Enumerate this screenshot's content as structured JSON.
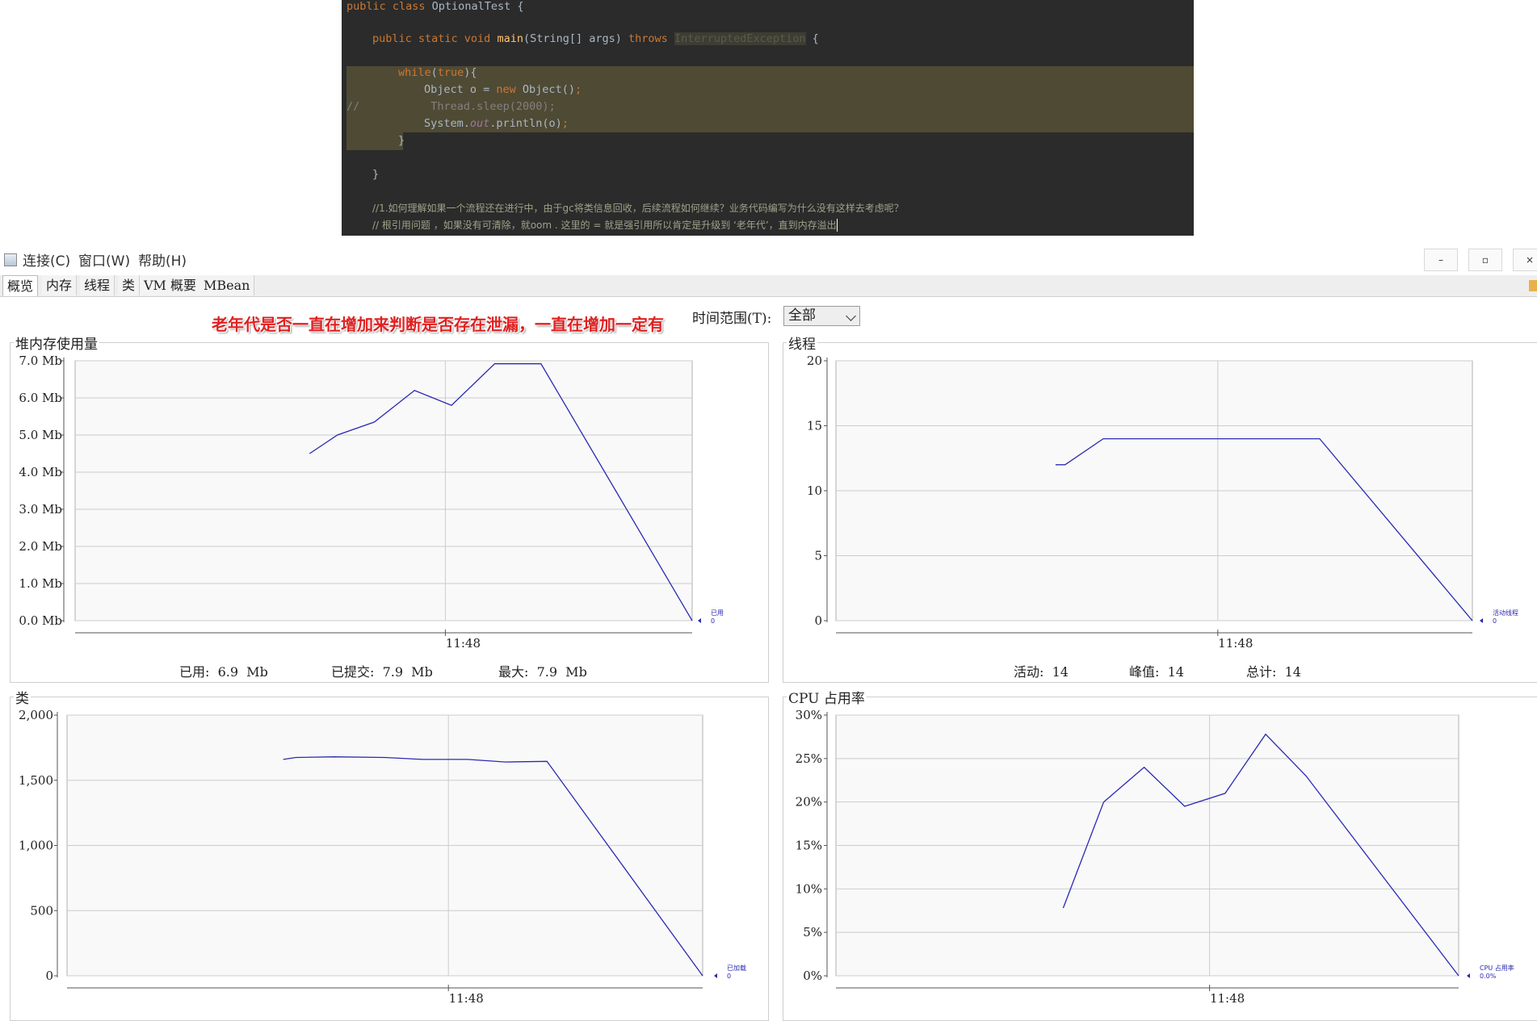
{
  "editor": {
    "lines": {
      "l1": {
        "kw": "public class",
        "rest": " OptionalTest {"
      },
      "l2": {
        "kw1": "public static void",
        "fn": "main",
        "rest1": "(String[] args) ",
        "kw2": "throws",
        "ex": "InterruptedException",
        "rest2": " {"
      },
      "l3": {
        "kw": "while",
        "rest1": "(",
        "kw2": "true",
        "rest2": "){"
      },
      "l4": {
        "rest1": "Object o = ",
        "kw": "new",
        "rest2": " Object()",
        "semi": ";"
      },
      "l5": {
        "cm": "//",
        "gr": "Thread.sleep(2000);"
      },
      "l6": {
        "rest1": "System.",
        "it": "out",
        "rest2": ".println(o)",
        "semi": ";"
      },
      "l7": {
        "rest": "}"
      },
      "l8": {
        "rest": "}"
      },
      "l9": {
        "cm": "//1.如何理解如果一个流程还在进行中，由于gc将类信息回收，后续流程如何继续？业务代码编写为什么没有这样去考虑呢？"
      },
      "l10": {
        "cm": "// 根引用问题 ，如果没有可清除，就oom . 这里的 = 就是强引用所以肯定是升级到 ‘老年代’，直到内存溢出"
      }
    }
  },
  "menubar": {
    "items": [
      "连接(C)",
      "窗口(W)",
      "帮助(H)"
    ],
    "minimize": "–",
    "restore": "▫",
    "close": "×"
  },
  "tabs": [
    "概览",
    "内存",
    "线程",
    "类",
    "VM 概要",
    "MBean"
  ],
  "time_range": {
    "label": "时间范围(T):",
    "value": "全部"
  },
  "annotation": "老年代是否一直在增加来判断是否存在泄漏，一直在增加一定有",
  "panels": {
    "heap": {
      "title": "堆内存使用量",
      "stats": {
        "used": "已用:  6.9  Mb",
        "committed": "已提交:  7.9  Mb",
        "max": "最大:  7.9  Mb"
      }
    },
    "threads": {
      "title": "线程",
      "stats": {
        "live": "活动:  14",
        "peak": "峰值:  14",
        "total": "总计:  14"
      }
    },
    "classes": {
      "title": "类"
    },
    "cpu": {
      "title": "CPU 占用率"
    }
  },
  "colors": {
    "line": "#2a2ab4",
    "grid": "#cccccc",
    "plot_bg": "#f9f9f9",
    "annotation": "#e02020"
  },
  "chart_data": [
    {
      "type": "line",
      "name": "heap",
      "title": "堆内存使用量",
      "ylim": [
        0,
        7
      ],
      "yticks": [
        0,
        1,
        2,
        3,
        4,
        5,
        6,
        7
      ],
      "ytick_labels": [
        "0.0 Mb",
        "1.0 Mb",
        "2.0 Mb",
        "3.0 Mb",
        "4.0 Mb",
        "5.0 Mb",
        "6.0 Mb",
        "7.0 Mb"
      ],
      "xlim": [
        0,
        100
      ],
      "xtick": {
        "pos": 60,
        "label": "11:48"
      },
      "series": [
        {
          "name": "已用",
          "last": "0",
          "x": [
            38,
            42.5,
            48.5,
            55,
            61,
            68,
            75.5,
            100
          ],
          "y": [
            4.5,
            5.0,
            5.35,
            6.2,
            5.8,
            6.92,
            6.92,
            0.0
          ]
        }
      ]
    },
    {
      "type": "line",
      "name": "threads",
      "title": "线程",
      "ylim": [
        0,
        20
      ],
      "yticks": [
        0,
        5,
        10,
        15,
        20
      ],
      "ytick_labels": [
        "0",
        "5",
        "10",
        "15",
        "20"
      ],
      "xlim": [
        0,
        100
      ],
      "xtick": {
        "pos": 60,
        "label": "11:48"
      },
      "series": [
        {
          "name": "活动线程",
          "last": "0",
          "x": [
            34.5,
            36,
            42,
            76,
            100
          ],
          "y": [
            12,
            12,
            14,
            14,
            0
          ]
        }
      ]
    },
    {
      "type": "line",
      "name": "classes",
      "title": "类",
      "ylim": [
        0,
        2000
      ],
      "yticks": [
        0,
        500,
        1000,
        1500,
        2000
      ],
      "ytick_labels": [
        "0",
        "500",
        "1,000",
        "1,500",
        "2,000"
      ],
      "xlim": [
        0,
        100
      ],
      "xtick": {
        "pos": 60,
        "label": "11:48"
      },
      "series": [
        {
          "name": "已加载",
          "last": "0",
          "x": [
            34,
            36,
            42,
            50,
            56,
            63,
            69,
            75.5,
            100
          ],
          "y": [
            1660,
            1675,
            1680,
            1675,
            1660,
            1660,
            1640,
            1645,
            0
          ]
        }
      ]
    },
    {
      "type": "line",
      "name": "cpu",
      "title": "CPU 占用率",
      "ylim": [
        0,
        30
      ],
      "yticks": [
        0,
        5,
        10,
        15,
        20,
        25,
        30
      ],
      "ytick_labels": [
        "0%",
        "5%",
        "10%",
        "15%",
        "20%",
        "25%",
        "30%"
      ],
      "xlim": [
        0,
        100
      ],
      "xtick": {
        "pos": 60,
        "label": "11:48"
      },
      "series": [
        {
          "name": "CPU 占用率",
          "last": "0.0%",
          "x": [
            36.5,
            43,
            49.5,
            56,
            62.5,
            69,
            75.5,
            100
          ],
          "y": [
            7.8,
            20,
            24,
            19.5,
            21,
            27.8,
            23,
            0
          ]
        }
      ]
    }
  ]
}
